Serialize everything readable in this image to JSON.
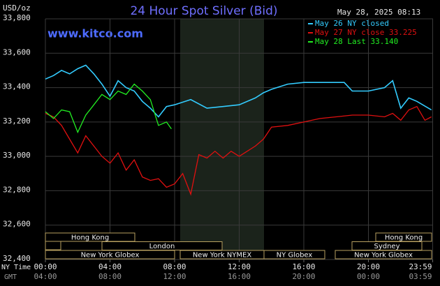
{
  "header": {
    "unit": "USD/oz",
    "site": "www.kitco.com",
    "timestamp": "May 28, 2025 08:13",
    "ny_time_label": "NY Time",
    "gmt_label": "GMT"
  },
  "chart_data": {
    "type": "line",
    "title": "24 Hour Spot Silver (Bid)",
    "xlim": [
      0,
      24
    ],
    "xticks": [
      {
        "value": 0,
        "label": "00:00"
      },
      {
        "value": 4,
        "label": "04:00"
      },
      {
        "value": 8,
        "label": "08:00"
      },
      {
        "value": 12,
        "label": "12:00"
      },
      {
        "value": 16,
        "label": "16:00"
      },
      {
        "value": 20,
        "label": "20:00"
      },
      {
        "value": 23.98,
        "label": "23:59"
      }
    ],
    "x2ticks": [
      {
        "value": 0,
        "label": "04:00"
      },
      {
        "value": 4,
        "label": "08:00"
      },
      {
        "value": 8,
        "label": "12:00"
      },
      {
        "value": 12,
        "label": "16:00"
      },
      {
        "value": 16,
        "label": "20:00"
      },
      {
        "value": 20,
        "label": "00:00"
      },
      {
        "value": 23.98,
        "label": "03:59"
      }
    ],
    "ylim": [
      32400,
      33800
    ],
    "yticks": [
      {
        "value": 32400,
        "label": "32,400"
      },
      {
        "value": 32600,
        "label": "32,600"
      },
      {
        "value": 32800,
        "label": "32,800"
      },
      {
        "value": 33000,
        "label": "33,000"
      },
      {
        "value": 33200,
        "label": "33,200"
      },
      {
        "value": 33400,
        "label": "33,400"
      },
      {
        "value": 33600,
        "label": "33,600"
      },
      {
        "value": 33800,
        "label": "33,800"
      }
    ],
    "grid": true,
    "series": [
      {
        "name": "May 26 NY closed",
        "color": "#33ccff",
        "x": [
          0,
          0.5,
          1,
          1.5,
          2,
          2.5,
          3,
          3.5,
          4,
          4.5,
          5,
          5.5,
          6,
          6.5,
          7,
          7.5,
          8,
          9,
          10,
          11,
          12,
          13,
          13.5,
          14,
          15,
          16,
          17,
          18,
          18.5,
          19,
          20,
          21,
          21.5,
          22,
          22.5,
          23,
          23.9
        ],
        "values": [
          33450,
          33470,
          33500,
          33480,
          33510,
          33530,
          33480,
          33420,
          33350,
          33440,
          33400,
          33380,
          33320,
          33280,
          33230,
          33290,
          33300,
          33330,
          33280,
          33290,
          33300,
          33340,
          33370,
          33390,
          33420,
          33430,
          33430,
          33430,
          33430,
          33380,
          33380,
          33400,
          33440,
          33280,
          33340,
          33320,
          33270
        ]
      },
      {
        "name": "May 27 NY close 33.225",
        "color": "#e01010",
        "x": [
          0,
          0.5,
          1,
          1.5,
          2,
          2.5,
          3,
          3.5,
          4,
          4.5,
          5,
          5.5,
          6,
          6.5,
          7,
          7.5,
          8,
          8.5,
          9,
          9.5,
          10,
          10.5,
          11,
          11.5,
          12,
          13,
          13.5,
          14,
          15,
          16,
          17,
          18,
          19,
          20,
          21,
          21.5,
          22,
          22.5,
          23,
          23.5,
          23.9
        ],
        "values": [
          33250,
          33230,
          33180,
          33100,
          33020,
          33120,
          33060,
          33000,
          32960,
          33020,
          32920,
          32980,
          32880,
          32860,
          32870,
          32820,
          32840,
          32900,
          32780,
          33010,
          32990,
          33030,
          32990,
          33030,
          33000,
          33060,
          33100,
          33170,
          33180,
          33200,
          33220,
          33230,
          33240,
          33240,
          33230,
          33250,
          33210,
          33270,
          33290,
          33210,
          33230
        ]
      },
      {
        "name": "May 28 Last 33.140",
        "color": "#22ee22",
        "x": [
          0,
          0.5,
          1,
          1.5,
          2,
          2.5,
          3,
          3.5,
          4,
          4.5,
          5,
          5.5,
          6,
          6.5,
          7,
          7.5,
          7.8
        ],
        "values": [
          33260,
          33220,
          33270,
          33260,
          33140,
          33240,
          33300,
          33360,
          33330,
          33380,
          33360,
          33420,
          33380,
          33330,
          33180,
          33200,
          33160
        ]
      }
    ]
  },
  "market_sessions": [
    "Hong Kong",
    "London",
    "New York Globex",
    "New York NYMEX",
    "NY Globex",
    "Hong Kong",
    "Sydney",
    "New York Globex"
  ]
}
